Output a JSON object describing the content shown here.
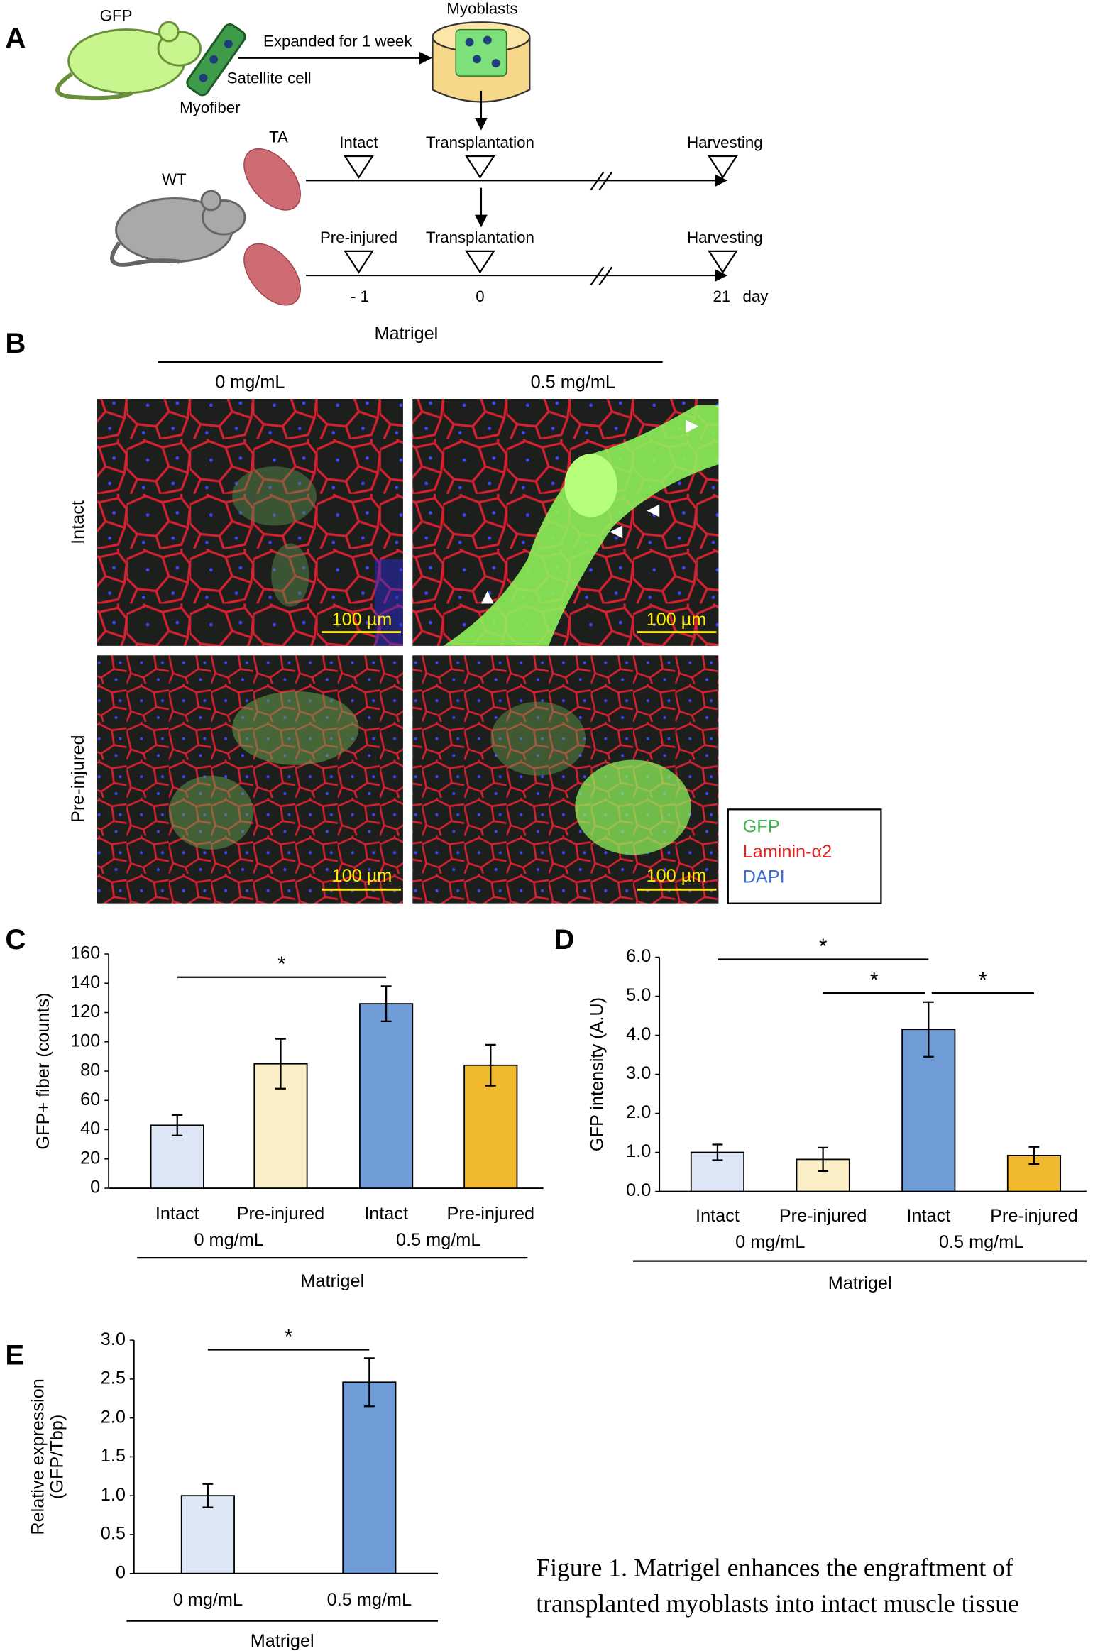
{
  "panel_labels": [
    "A",
    "B",
    "C",
    "D",
    "E"
  ],
  "schematic": {
    "donor": "GFP",
    "myofiber": "Myofiber",
    "satellite": "Satellite cell",
    "expansion": "Expanded for 1 week",
    "myoblasts": "Myoblasts",
    "muscle": "TA",
    "host": "WT",
    "row1": [
      "Intact",
      "Transplantation",
      "Harvesting"
    ],
    "row2": [
      "Pre-injured",
      "Transplantation",
      "Harvesting"
    ],
    "days": [
      "- 1",
      "0",
      "21"
    ],
    "day_unit": "day"
  },
  "micrographs": {
    "title": "Matrigel",
    "columns": [
      "0 mg/mL",
      "0.5 mg/mL"
    ],
    "rows": [
      "Intact",
      "Pre-injured"
    ],
    "scale_bar": "100 µm",
    "legend": [
      "GFP",
      "Laminin-α2",
      "DAPI"
    ]
  },
  "chart_data": [
    {
      "type": "bar",
      "ylabel": "GFP+ fiber (counts)",
      "categories": [
        "Intact",
        "Pre-injured",
        "Intact",
        "Pre-injured"
      ],
      "groups": [
        "0 mg/mL",
        "0.5 mg/mL"
      ],
      "xlabel": "Matrigel",
      "values": [
        43,
        85,
        126,
        84
      ],
      "errors": [
        7,
        17,
        12,
        14
      ],
      "colors": [
        "#dde6f5",
        "#fbefc8",
        "#6f9bd6",
        "#f0b92e"
      ],
      "ylim": [
        0,
        160
      ],
      "yticks": [
        0,
        20,
        40,
        60,
        80,
        100,
        120,
        140,
        160
      ],
      "significance": [
        "*"
      ]
    },
    {
      "type": "bar",
      "ylabel": "GFP intensity (A.U)",
      "categories": [
        "Intact",
        "Pre-injured",
        "Intact",
        "Pre-injured"
      ],
      "groups": [
        "0 mg/mL",
        "0.5 mg/mL"
      ],
      "xlabel": "Matrigel",
      "values": [
        1.0,
        0.82,
        4.15,
        0.92
      ],
      "errors": [
        0.2,
        0.3,
        0.7,
        0.22
      ],
      "colors": [
        "#dde6f5",
        "#fbefc8",
        "#6f9bd6",
        "#f0b92e"
      ],
      "ylim": [
        0,
        6
      ],
      "yticks": [
        {
          "value": 0,
          "label": "0.0"
        },
        {
          "value": 1,
          "label": "1.0"
        },
        {
          "value": 2,
          "label": "2.0"
        },
        {
          "value": 3,
          "label": "3.0"
        },
        {
          "value": 4,
          "label": "4.0"
        },
        {
          "value": 5,
          "label": "5.0"
        },
        {
          "value": 6,
          "label": "6.0"
        }
      ],
      "significance": [
        "*",
        "*",
        "*"
      ]
    },
    {
      "type": "bar",
      "ylabel": [
        "Relative expression",
        "(GFP/Tbp)"
      ],
      "categories": [
        "0 mg/mL",
        "0.5 mg/mL"
      ],
      "xlabel": "Matrigel",
      "values": [
        1.0,
        2.46
      ],
      "errors": [
        0.15,
        0.31
      ],
      "colors": [
        "#dde6f5",
        "#6f9bd6"
      ],
      "ylim": [
        0,
        3
      ],
      "yticks": [
        0,
        0.5,
        {
          "value": 1,
          "label": "1.0"
        },
        1.5,
        {
          "value": 2,
          "label": "2.0"
        },
        2.5,
        {
          "value": 3,
          "label": "3.0"
        }
      ],
      "significance": [
        "*"
      ]
    }
  ],
  "caption": [
    "Figure 1. Matrigel enhances the engraftment of",
    "transplanted myoblasts into intact muscle tissue"
  ]
}
